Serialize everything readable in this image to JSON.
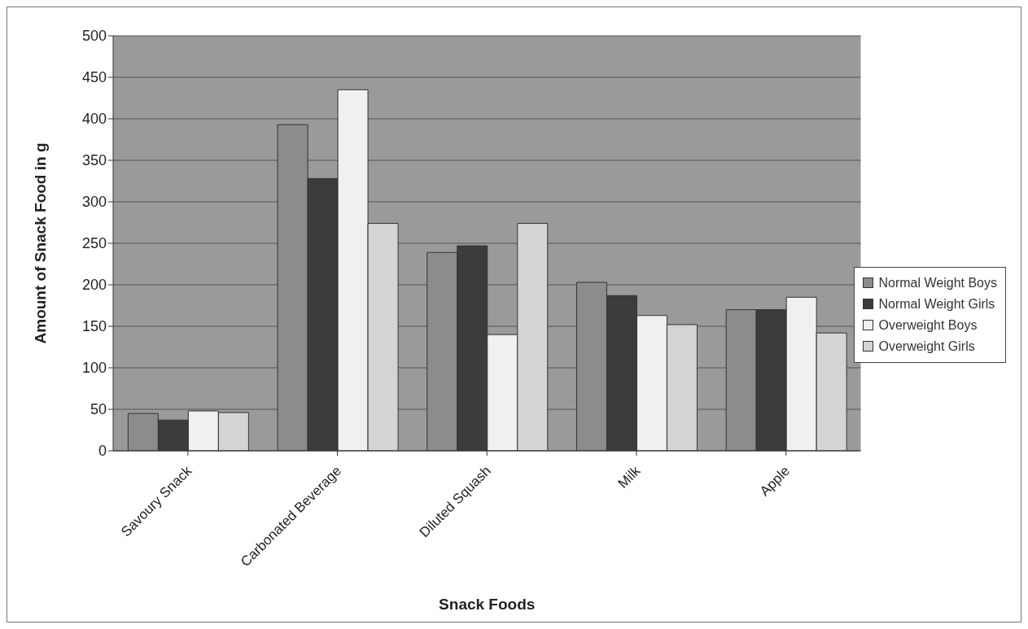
{
  "chart_data": {
    "type": "bar",
    "xlabel": "Snack Foods",
    "ylabel": "Amount of Snack Food in g",
    "categories": [
      "Savoury Snack",
      "Carbonated Beverage",
      "Diluted Squash",
      "Milk",
      "Apple"
    ],
    "series": [
      {
        "name": "Normal Weight Boys",
        "color": "#8c8c8c",
        "values": [
          45,
          393,
          239,
          203,
          170
        ]
      },
      {
        "name": "Normal Weight Girls",
        "color": "#3c3c3c",
        "values": [
          37,
          328,
          247,
          187,
          170
        ]
      },
      {
        "name": "Overweight Boys",
        "color": "#f0f0f0",
        "values": [
          48,
          435,
          140,
          163,
          185
        ]
      },
      {
        "name": "Overweight Girls",
        "color": "#d4d4d4",
        "values": [
          46,
          274,
          274,
          152,
          142
        ]
      }
    ],
    "ylim": [
      0,
      500
    ],
    "yticks": [
      0,
      50,
      100,
      150,
      200,
      250,
      300,
      350,
      400,
      450,
      500
    ],
    "grid": "y",
    "legend": "right"
  }
}
